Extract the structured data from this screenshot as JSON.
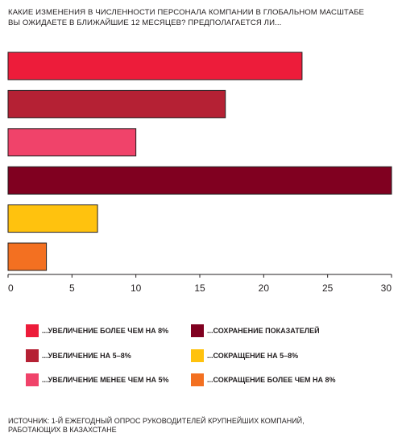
{
  "chart_data": {
    "type": "bar",
    "orientation": "horizontal",
    "title_lines": [
      "КАКИЕ ИЗМЕНЕНИЯ В ЧИСЛЕННОСТИ ПЕРСОНАЛА КОМПАНИИ В ГЛОБАЛЬНОМ МАСШТАБЕ",
      "ВЫ ОЖИДАЕТЕ В БЛИЖАЙШИЕ 12 МЕСЯЦЕВ? ПРЕДПОЛАГАЕТСЯ ЛИ..."
    ],
    "categories": [
      "...УВЕЛИЧЕНИЕ БОЛЕЕ ЧЕМ НА 8%",
      "...УВЕЛИЧЕНИЕ НА 5–8%",
      "...УВЕЛИЧЕНИЕ МЕНЕЕ ЧЕМ НА 5%",
      "...СОХРАНЕНИЕ ПОКАЗАТЕЛЕЙ",
      "...СОКРАЩЕНИЕ НА 5–8%",
      "...СОКРАЩЕНИЕ БОЛЕЕ ЧЕМ НА 8%"
    ],
    "values": [
      23,
      17,
      10,
      30,
      7,
      3
    ],
    "colors": [
      "#ed1c3a",
      "#b52134",
      "#f0436a",
      "#800020",
      "#ffc20e",
      "#f37021"
    ],
    "xlim": [
      0,
      30
    ],
    "x_ticks": [
      0,
      5,
      10,
      15,
      20,
      25,
      30
    ],
    "grid": false,
    "legend_placement": "bottom"
  },
  "source_lines": [
    "ИСТОЧНИК: 1-Й ЕЖЕГОДНЫЙ ОПРОС РУКОВОДИТЕЛЕЙ КРУПНЕЙШИХ КОМПАНИЙ,",
    "РАБОТАЮЩИХ В КАЗАХСТАНЕ"
  ]
}
